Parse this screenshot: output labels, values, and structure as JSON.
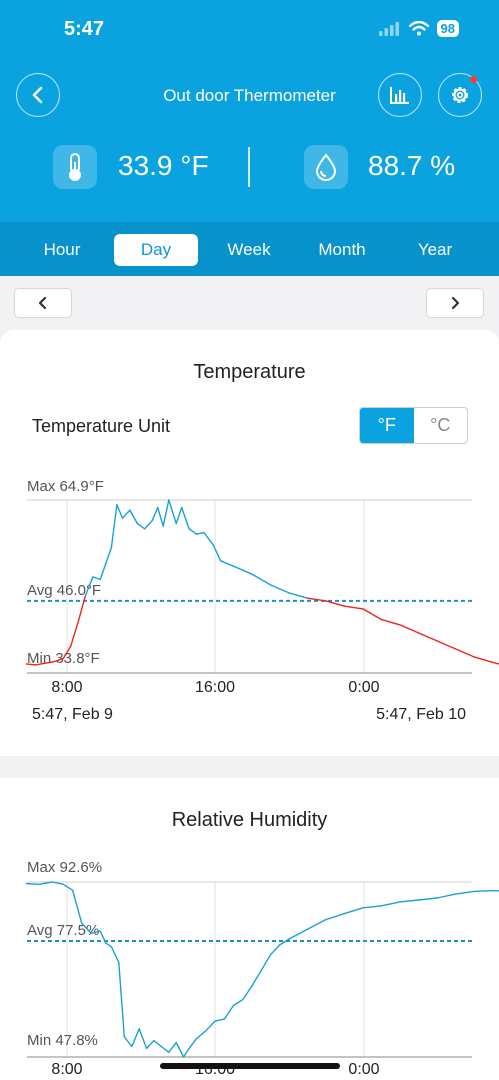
{
  "status": {
    "time": "5:47",
    "battery": "98"
  },
  "header": {
    "title": "Out door Thermometer"
  },
  "readings": {
    "temperature": "33.9 °F",
    "humidity": "88.7 %"
  },
  "tabs": [
    "Hour",
    "Day",
    "Week",
    "Month",
    "Year"
  ],
  "active_tab": "Day",
  "temperature_card": {
    "title": "Temperature",
    "unit_label": "Temperature Unit",
    "unit_f": "°F",
    "unit_c": "°C",
    "max_label": "Max 64.9°F",
    "avg_label": "Avg 46.0°F",
    "min_label": "Min 33.8°F",
    "start_date": "5:47,  Feb 9",
    "end_date": "5:47,  Feb 10"
  },
  "humidity_card": {
    "title": "Relative Humidity",
    "max_label": "Max 92.6%",
    "avg_label": "Avg 77.5%",
    "min_label": "Min 47.8%"
  },
  "colors": {
    "accent": "#0aa3e0",
    "line_blue": "#1aa0d8",
    "line_red": "#e8251f",
    "avg_dash": "#1a8fc9"
  },
  "chart_data": [
    {
      "type": "line",
      "x_ticks": [
        "8:00",
        "16:00",
        "0:00"
      ],
      "y_unit": "°F",
      "max": 64.9,
      "avg": 46.0,
      "min": 33.8,
      "series": [
        {
          "points": [
            [
              5.8,
              34.2
            ],
            [
              6.3,
              34.0
            ],
            [
              6.8,
              34.3
            ],
            [
              7.3,
              34.6
            ],
            [
              7.8,
              35.2
            ],
            [
              8.2,
              37.5
            ],
            [
              8.6,
              42
            ],
            [
              9.0,
              47
            ],
            [
              9.4,
              50.5
            ],
            [
              9.8,
              50.0
            ],
            [
              10.1,
              53
            ],
            [
              10.4,
              56
            ],
            [
              10.7,
              64.0
            ],
            [
              11.0,
              61.5
            ],
            [
              11.4,
              63
            ],
            [
              11.8,
              60.5
            ],
            [
              12.2,
              59.5
            ],
            [
              12.6,
              61
            ],
            [
              12.9,
              63.5
            ],
            [
              13.2,
              60
            ],
            [
              13.5,
              64.9
            ],
            [
              13.9,
              60.5
            ],
            [
              14.2,
              63.5
            ],
            [
              14.6,
              59.5
            ],
            [
              15.0,
              58.5
            ],
            [
              15.4,
              58.8
            ],
            [
              15.9,
              56.5
            ],
            [
              16.3,
              53.5
            ],
            [
              17.0,
              52.5
            ],
            [
              18.0,
              51
            ],
            [
              19.0,
              49
            ],
            [
              20.0,
              47.5
            ],
            [
              21.0,
              46.5
            ],
            [
              22.0,
              46.0
            ],
            [
              23.0,
              45.0
            ],
            [
              24.0,
              44.5
            ],
            [
              25.0,
              42.5
            ],
            [
              26.0,
              41.5
            ],
            [
              27.0,
              40.0
            ],
            [
              28.0,
              38.5
            ],
            [
              29.0,
              37.0
            ],
            [
              30.0,
              35.5
            ],
            [
              31.0,
              34.5
            ],
            [
              31.8,
              33.8
            ]
          ]
        }
      ]
    },
    {
      "type": "line",
      "x_ticks": [
        "8:00",
        "16:00",
        "0:00"
      ],
      "y_unit": "%",
      "max": 92.6,
      "avg": 77.5,
      "min": 47.8,
      "series": [
        {
          "points": [
            [
              5.8,
              92.2
            ],
            [
              6.5,
              92.0
            ],
            [
              7.2,
              92.6
            ],
            [
              7.8,
              92.0
            ],
            [
              8.3,
              90.5
            ],
            [
              8.8,
              82
            ],
            [
              9.3,
              79.5
            ],
            [
              9.8,
              80
            ],
            [
              10.1,
              77
            ],
            [
              10.4,
              76
            ],
            [
              10.8,
              72
            ],
            [
              11.1,
              53
            ],
            [
              11.5,
              50.5
            ],
            [
              11.9,
              55
            ],
            [
              12.3,
              50
            ],
            [
              12.7,
              52
            ],
            [
              13.1,
              50.5
            ],
            [
              13.5,
              49
            ],
            [
              13.9,
              51.5
            ],
            [
              14.3,
              47.8
            ],
            [
              14.6,
              50
            ],
            [
              15.0,
              52.5
            ],
            [
              15.5,
              54.5
            ],
            [
              16.0,
              57
            ],
            [
              16.5,
              57.5
            ],
            [
              17.0,
              61
            ],
            [
              17.5,
              62.5
            ],
            [
              18.0,
              66
            ],
            [
              18.5,
              70
            ],
            [
              19.0,
              74
            ],
            [
              19.5,
              76.5
            ],
            [
              20.0,
              78
            ],
            [
              21.0,
              80.5
            ],
            [
              22.0,
              83
            ],
            [
              23.0,
              84.5
            ],
            [
              24.0,
              86
            ],
            [
              25.0,
              86.5
            ],
            [
              26.0,
              87.5
            ],
            [
              27.0,
              88
            ],
            [
              28.0,
              88.5
            ],
            [
              29.0,
              89.5
            ],
            [
              30.0,
              90.2
            ],
            [
              31.0,
              90.4
            ],
            [
              31.8,
              90.3
            ]
          ]
        }
      ]
    }
  ]
}
